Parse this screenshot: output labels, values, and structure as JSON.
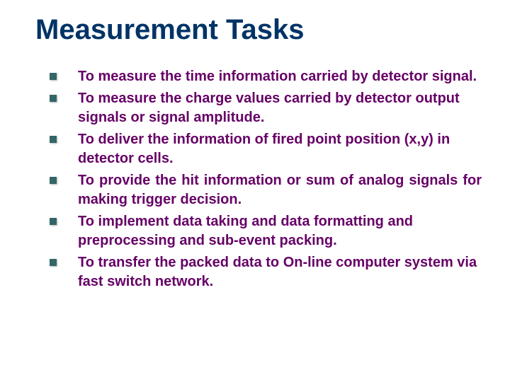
{
  "slide": {
    "title": "Measurement Tasks",
    "title_color": "#003366",
    "title_fontsize": 40,
    "bullet_color": "#660066",
    "bullet_marker_color": "#336666",
    "bullet_fontsize": 20,
    "background_color": "#ffffff",
    "bullets": [
      {
        "text": "To measure the time information carried by detector signal.",
        "justified": false
      },
      {
        "text": "To measure the charge values carried by detector output signals or signal amplitude.",
        "justified": false
      },
      {
        "text": "To deliver the information of fired point position (x,y) in detector cells.",
        "justified": false
      },
      {
        "text": "To provide the hit information or sum of analog signals for making trigger decision.",
        "justified": true
      },
      {
        "text": "To implement data taking and data formatting and preprocessing and sub-event packing.",
        "justified": false
      },
      {
        "text": "To transfer the packed data to On-line computer system via fast switch network.",
        "justified": false
      }
    ]
  }
}
